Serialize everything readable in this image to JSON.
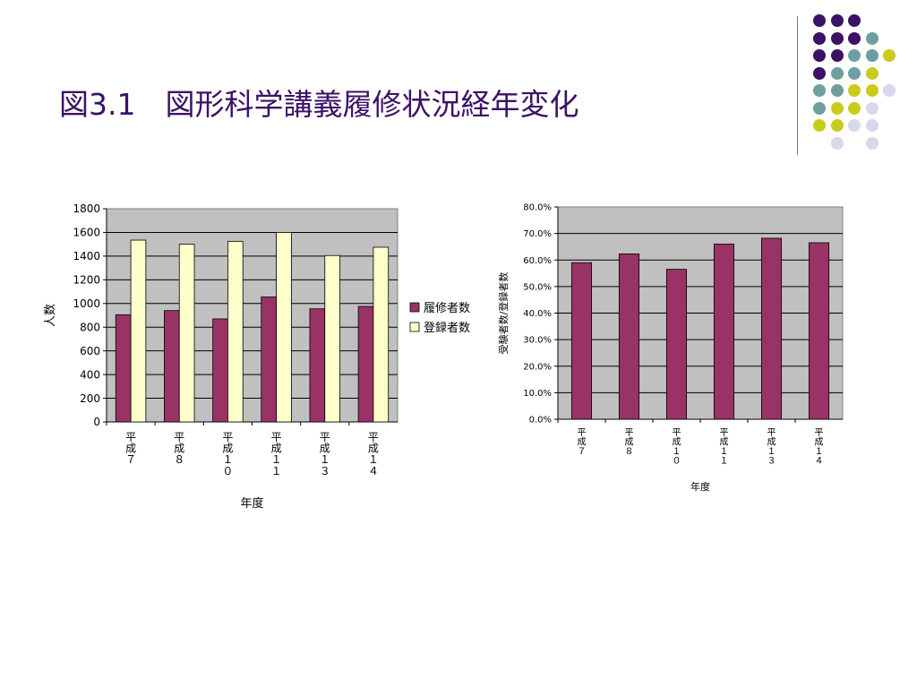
{
  "slide": {
    "title": "図3.1　図形科学講義履修状況経年変化"
  },
  "decoration": {
    "dot_colors": {
      "purple": "#3b1266",
      "teal": "#6f9e9e",
      "lime": "#c9cc1e",
      "lavender": "#d8d8ea"
    },
    "dot_rows": [
      [
        "",
        "",
        "",
        "purple",
        "purple",
        "purple",
        "",
        ""
      ],
      [
        "",
        "",
        "",
        "purple",
        "purple",
        "purple",
        "teal",
        ""
      ],
      [
        "",
        "",
        "",
        "purple",
        "purple",
        "teal",
        "teal",
        "lime"
      ],
      [
        "",
        "",
        "",
        "purple",
        "teal",
        "teal",
        "lime",
        ""
      ],
      [
        "",
        "",
        "",
        "teal",
        "teal",
        "lime",
        "lime",
        "lavender"
      ],
      [
        "",
        "",
        "",
        "teal",
        "lime",
        "lime",
        "lavender",
        ""
      ],
      [
        "",
        "",
        "",
        "lime",
        "lime",
        "lavender",
        "lavender",
        ""
      ],
      [
        "",
        "",
        "",
        "",
        "lavender",
        "",
        "lavender",
        ""
      ]
    ]
  },
  "chart_data": [
    {
      "type": "bar",
      "categories": [
        "平成７",
        "平成８",
        "平成１０",
        "平成１１",
        "平成１３",
        "平成１４"
      ],
      "series": [
        {
          "name": "履修者数",
          "color": "#993366",
          "values": [
            905,
            940,
            870,
            1055,
            955,
            975
          ]
        },
        {
          "name": "登録者数",
          "color": "#ffffcc",
          "values": [
            1535,
            1500,
            1525,
            1600,
            1405,
            1475
          ]
        }
      ],
      "ylim": [
        0,
        1800
      ],
      "yticks": [
        "0",
        "200",
        "400",
        "600",
        "800",
        "1000",
        "1200",
        "1400",
        "1600",
        "1800"
      ],
      "xlabel": "年度",
      "ylabel": "人数",
      "grid": true,
      "plot_background": "#c0c0c0",
      "legend": "right"
    },
    {
      "type": "bar",
      "categories": [
        "平成７",
        "平成８",
        "平成１０",
        "平成１１",
        "平成１３",
        "平成１４"
      ],
      "series": [
        {
          "color": "#993366",
          "values": [
            59.0,
            62.3,
            56.5,
            66.0,
            68.2,
            66.5
          ]
        }
      ],
      "ylim": [
        0,
        80
      ],
      "yticks": [
        "0.0%",
        "10.0%",
        "20.0%",
        "30.0%",
        "40.0%",
        "50.0%",
        "60.0%",
        "70.0%",
        "80.0%"
      ],
      "xlabel": "年度",
      "ylabel": "受験者数/登録者数",
      "grid": true,
      "plot_background": "#c0c0c0"
    }
  ]
}
